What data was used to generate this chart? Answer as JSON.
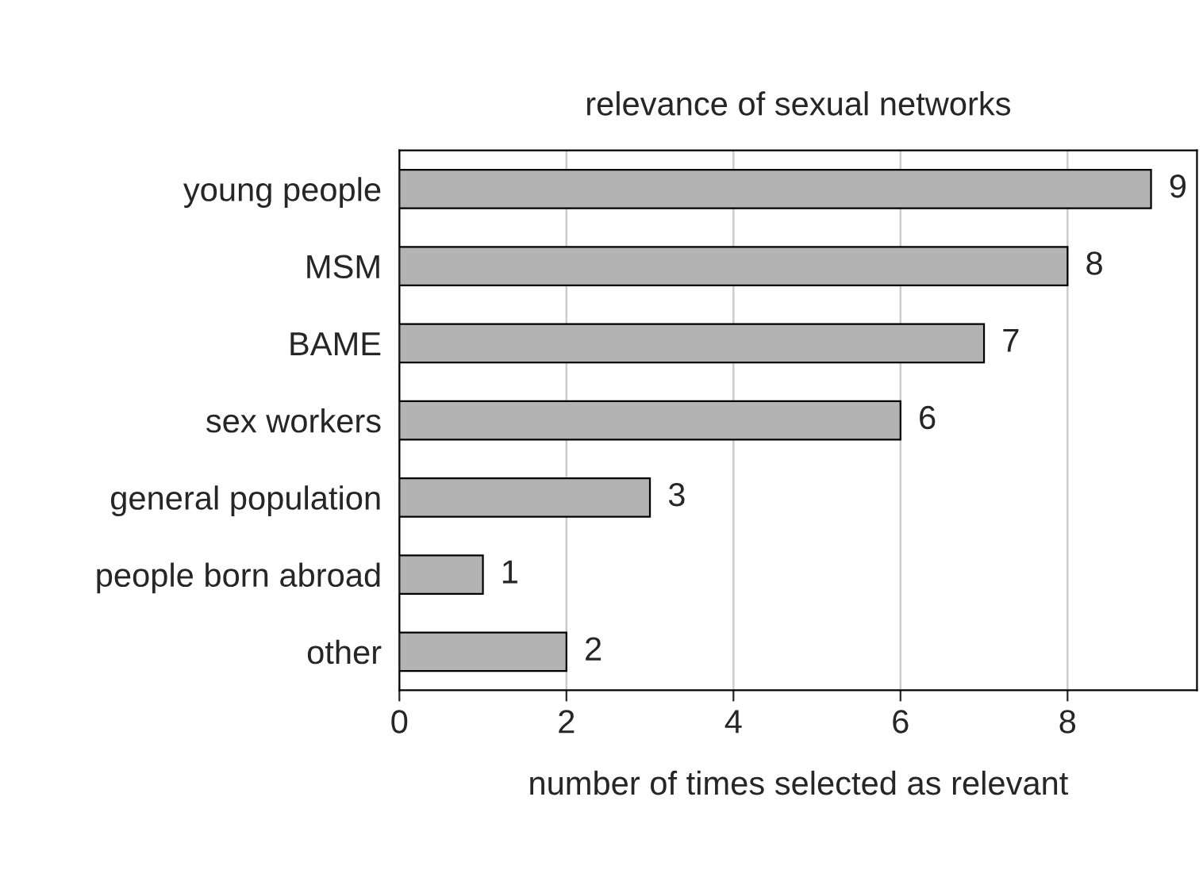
{
  "chart_data": {
    "type": "bar",
    "orientation": "horizontal",
    "title": "relevance of sexual networks",
    "xlabel": "number of times selected as relevant",
    "categories": [
      "young people",
      "MSM",
      "BAME",
      "sex workers",
      "general population",
      "people born abroad",
      "other"
    ],
    "values": [
      9,
      8,
      7,
      6,
      3,
      1,
      2
    ],
    "color": "#b3b3b3",
    "xlim": [
      0,
      9.55
    ],
    "xticks": [
      0,
      2,
      4,
      6,
      8
    ],
    "grid": "x",
    "data_labels": true
  }
}
